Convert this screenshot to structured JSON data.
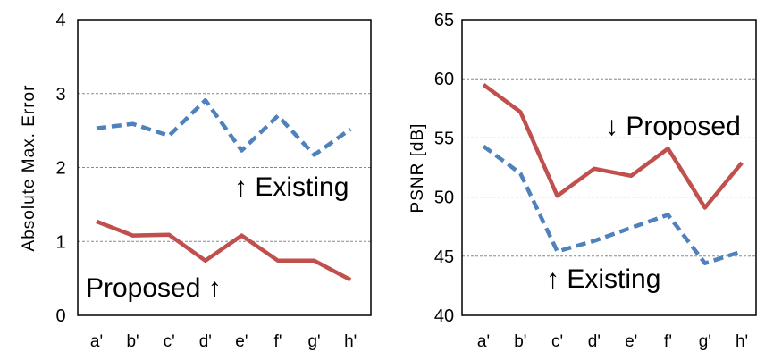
{
  "chart_data": [
    {
      "type": "line",
      "ylabel": "Absolute Max. Error",
      "xlabel": "",
      "categories": [
        "a'",
        "b'",
        "c'",
        "d'",
        "e'",
        "f'",
        "g'",
        "h'"
      ],
      "ylim": [
        0,
        4
      ],
      "yticks": [
        "0",
        "1",
        "2",
        "3",
        "4"
      ],
      "grid": true,
      "series": [
        {
          "name": "Proposed",
          "color": "#c0504d",
          "style": "solid",
          "values": [
            1.27,
            1.08,
            1.09,
            0.74,
            1.08,
            0.74,
            0.74,
            0.48
          ]
        },
        {
          "name": "Existing",
          "color": "#4f81bd",
          "style": "dashed",
          "values": [
            2.53,
            2.59,
            2.43,
            2.91,
            2.23,
            2.7,
            2.17,
            2.52
          ]
        }
      ],
      "annotations": [
        {
          "text": "↑ Existing",
          "series": "Existing"
        },
        {
          "text": "Proposed ↑",
          "series": "Proposed"
        }
      ]
    },
    {
      "type": "line",
      "ylabel": "PSNR [dB]",
      "xlabel": "",
      "categories": [
        "a'",
        "b'",
        "c'",
        "d'",
        "e'",
        "f'",
        "g'",
        "h'"
      ],
      "ylim": [
        40,
        65
      ],
      "yticks": [
        "40",
        "45",
        "50",
        "55",
        "60",
        "65"
      ],
      "grid": true,
      "series": [
        {
          "name": "Proposed",
          "color": "#c0504d",
          "style": "solid",
          "values": [
            59.5,
            57.2,
            50.1,
            52.4,
            51.8,
            54.1,
            49.1,
            52.9
          ]
        },
        {
          "name": "Existing",
          "color": "#4f81bd",
          "style": "dashed",
          "values": [
            54.3,
            52.0,
            45.4,
            46.3,
            47.4,
            48.5,
            44.4,
            45.4
          ]
        }
      ],
      "annotations": [
        {
          "text": "↓ Proposed",
          "series": "Proposed"
        },
        {
          "text": "↑ Existing",
          "series": "Existing"
        }
      ]
    }
  ]
}
